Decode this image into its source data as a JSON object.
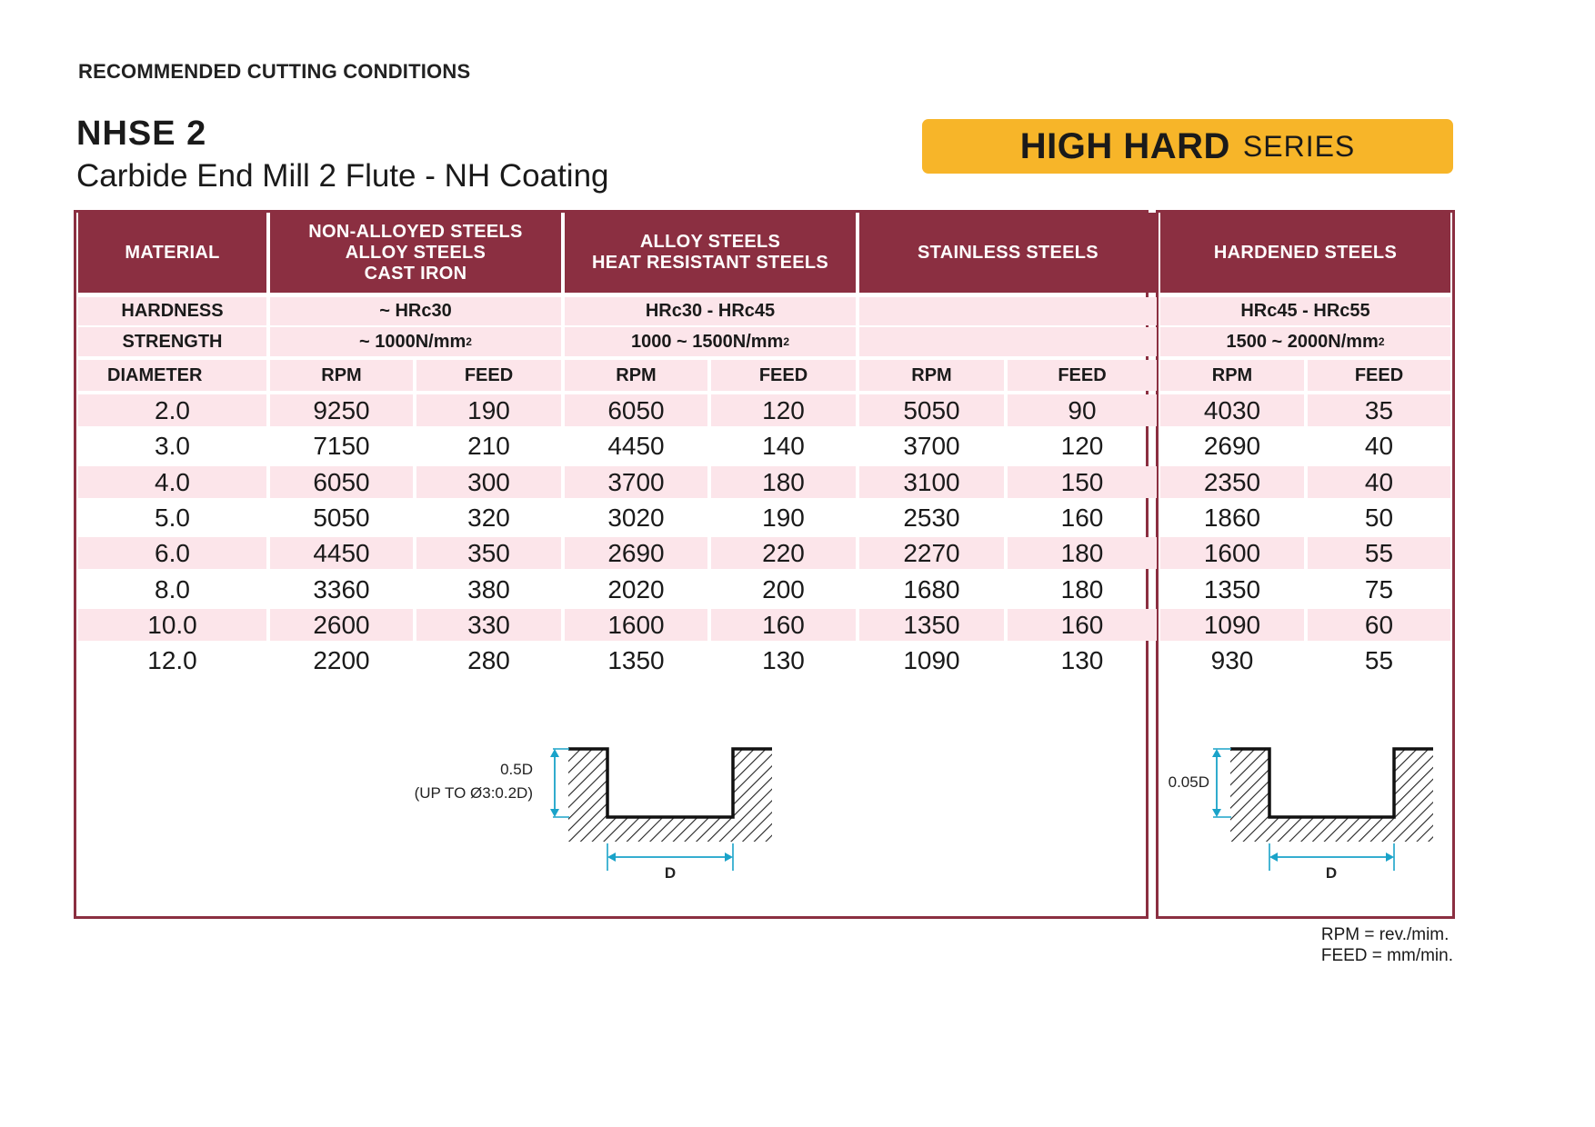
{
  "page": {
    "heading": "RECOMMENDED CUTTING CONDITIONS",
    "model": "NHSE 2",
    "subtitle": "Carbide End Mill 2 Flute - NH Coating",
    "badge": {
      "bold": "HIGH HARD",
      "light": "SERIES",
      "color": "#f7b529"
    },
    "accent_color": "#8b2f41",
    "row_tint": "#fce5ea"
  },
  "table": {
    "material_label": "MATERIAL",
    "hardness_label": "HARDNESS",
    "strength_label": "STRENGTH",
    "diameter_label": "DIAMETER",
    "rpm_label": "RPM",
    "feed_label": "FEED",
    "groups": [
      {
        "name": [
          "NON-ALLOYED STEELS",
          "ALLOY STEELS",
          "CAST IRON"
        ],
        "hardness": "~ HRc30",
        "strength": "~ 1000N/mm",
        "strength_sup": "2"
      },
      {
        "name": [
          "ALLOY STEELS",
          "HEAT RESISTANT STEELS"
        ],
        "hardness": "HRc30 - HRc45",
        "strength": "1000 ~ 1500N/mm",
        "strength_sup": "2"
      },
      {
        "name": [
          "STAINLESS STEELS"
        ],
        "hardness": "",
        "strength": "",
        "strength_sup": ""
      },
      {
        "name": [
          "HARDENED STEELS"
        ],
        "hardness": "HRc45 - HRc55",
        "strength": "1500 ~ 2000N/mm",
        "strength_sup": "2"
      }
    ],
    "rows": [
      {
        "diameter": "2.0",
        "values": [
          "9250",
          "190",
          "6050",
          "120",
          "5050",
          "90",
          "4030",
          "35"
        ]
      },
      {
        "diameter": "3.0",
        "values": [
          "7150",
          "210",
          "4450",
          "140",
          "3700",
          "120",
          "2690",
          "40"
        ]
      },
      {
        "diameter": "4.0",
        "values": [
          "6050",
          "300",
          "3700",
          "180",
          "3100",
          "150",
          "2350",
          "40"
        ]
      },
      {
        "diameter": "5.0",
        "values": [
          "5050",
          "320",
          "3020",
          "190",
          "2530",
          "160",
          "1860",
          "50"
        ]
      },
      {
        "diameter": "6.0",
        "values": [
          "4450",
          "350",
          "2690",
          "220",
          "2270",
          "180",
          "1600",
          "55"
        ]
      },
      {
        "diameter": "8.0",
        "values": [
          "3360",
          "380",
          "2020",
          "200",
          "1680",
          "180",
          "1350",
          "75"
        ]
      },
      {
        "diameter": "10.0",
        "values": [
          "2600",
          "330",
          "1600",
          "160",
          "1350",
          "160",
          "1090",
          "60"
        ]
      },
      {
        "diameter": "12.0",
        "values": [
          "2200",
          "280",
          "1350",
          "130",
          "1090",
          "130",
          "930",
          "55"
        ]
      }
    ]
  },
  "diagrams": {
    "main": {
      "depth": "0.5D",
      "note": "(UP TO Ø3:0.2D)",
      "width": "D"
    },
    "hard": {
      "depth": "0.05D",
      "width": "D"
    }
  },
  "units": {
    "rpm": "RPM = rev./mim.",
    "feed": "FEED = mm/min."
  }
}
